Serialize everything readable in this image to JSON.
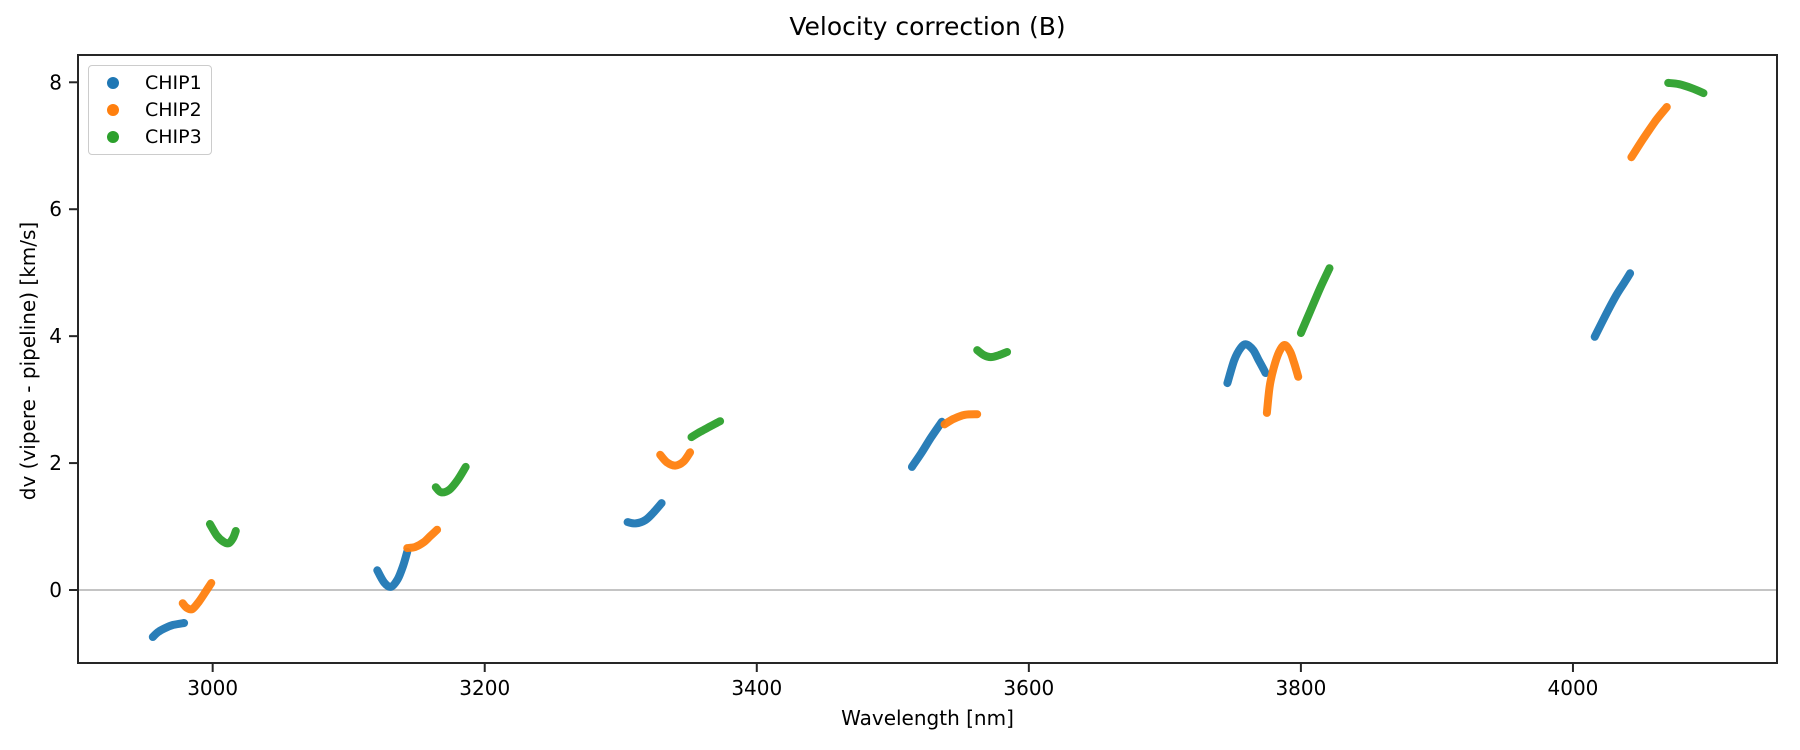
{
  "chart_data": {
    "type": "scatter",
    "title": "Velocity correction (B)",
    "xlabel": "Wavelength [nm]",
    "ylabel": "dv (vipere - pipeline) [km/s]",
    "xlim": [
      2901,
      4150
    ],
    "ylim": [
      -1.15,
      8.43
    ],
    "xticks": [
      3000,
      3200,
      3400,
      3600,
      3800,
      4000
    ],
    "xtick_labels": [
      "3000",
      "3200",
      "3400",
      "3600",
      "3800",
      "4000"
    ],
    "yticks": [
      0,
      2,
      4,
      6,
      8
    ],
    "ytick_labels": [
      "0",
      "2",
      "4",
      "6",
      "8"
    ],
    "grid": false,
    "zero_line_y": 0,
    "zero_line_color": "#b0b0b0",
    "axis_color": "#262626",
    "legend_position": "upper left",
    "series": [
      {
        "name": "CHIP1",
        "color": "#1f77b4",
        "segments": [
          [
            [
              2956,
              -0.74
            ],
            [
              2960,
              -0.66
            ],
            [
              2965,
              -0.6
            ],
            [
              2971,
              -0.55
            ],
            [
              2979,
              -0.52
            ]
          ],
          [
            [
              3121,
              0.31
            ],
            [
              3126,
              0.12
            ],
            [
              3131,
              0.05
            ],
            [
              3136,
              0.17
            ],
            [
              3140,
              0.38
            ],
            [
              3143,
              0.6
            ]
          ],
          [
            [
              3305,
              1.07
            ],
            [
              3311,
              1.05
            ],
            [
              3318,
              1.1
            ],
            [
              3324,
              1.22
            ],
            [
              3330,
              1.37
            ]
          ],
          [
            [
              3514,
              1.94
            ],
            [
              3521,
              2.16
            ],
            [
              3528,
              2.4
            ],
            [
              3536,
              2.65
            ]
          ],
          [
            [
              3746,
              3.26
            ],
            [
              3751,
              3.62
            ],
            [
              3756,
              3.82
            ],
            [
              3760,
              3.87
            ],
            [
              3765,
              3.78
            ],
            [
              3769,
              3.62
            ],
            [
              3774,
              3.42
            ]
          ],
          [
            [
              4016,
              3.99
            ],
            [
              4024,
              4.33
            ],
            [
              4032,
              4.65
            ],
            [
              4038,
              4.85
            ],
            [
              4042,
              4.99
            ]
          ]
        ]
      },
      {
        "name": "CHIP2",
        "color": "#ff7f0e",
        "segments": [
          [
            [
              2978,
              -0.21
            ],
            [
              2981,
              -0.28
            ],
            [
              2985,
              -0.3
            ],
            [
              2990,
              -0.18
            ],
            [
              2995,
              -0.02
            ],
            [
              2999,
              0.11
            ]
          ],
          [
            [
              3143,
              0.66
            ],
            [
              3149,
              0.68
            ],
            [
              3155,
              0.75
            ],
            [
              3160,
              0.85
            ],
            [
              3165,
              0.95
            ]
          ],
          [
            [
              3329,
              2.13
            ],
            [
              3334,
              2.01
            ],
            [
              3340,
              1.96
            ],
            [
              3346,
              2.02
            ],
            [
              3351,
              2.17
            ]
          ],
          [
            [
              3538,
              2.61
            ],
            [
              3545,
              2.7
            ],
            [
              3553,
              2.76
            ],
            [
              3562,
              2.77
            ]
          ],
          [
            [
              3775,
              2.79
            ],
            [
              3777,
              3.2
            ],
            [
              3780,
              3.5
            ],
            [
              3784,
              3.75
            ],
            [
              3788,
              3.86
            ],
            [
              3792,
              3.76
            ],
            [
              3795,
              3.58
            ],
            [
              3798,
              3.36
            ]
          ],
          [
            [
              4043,
              6.82
            ],
            [
              4052,
              7.12
            ],
            [
              4061,
              7.4
            ],
            [
              4069,
              7.61
            ]
          ]
        ]
      },
      {
        "name": "CHIP3",
        "color": "#2ca02c",
        "segments": [
          [
            [
              2998,
              1.04
            ],
            [
              3003,
              0.86
            ],
            [
              3008,
              0.76
            ],
            [
              3012,
              0.74
            ],
            [
              3015,
              0.82
            ],
            [
              3017,
              0.93
            ]
          ],
          [
            [
              3164,
              1.62
            ],
            [
              3168,
              1.54
            ],
            [
              3174,
              1.58
            ],
            [
              3180,
              1.73
            ],
            [
              3186,
              1.94
            ]
          ],
          [
            [
              3352,
              2.41
            ],
            [
              3359,
              2.5
            ],
            [
              3366,
              2.58
            ],
            [
              3373,
              2.66
            ]
          ],
          [
            [
              3562,
              3.78
            ],
            [
              3567,
              3.7
            ],
            [
              3572,
              3.67
            ],
            [
              3578,
              3.7
            ],
            [
              3584,
              3.75
            ]
          ],
          [
            [
              3800,
              4.05
            ],
            [
              3807,
              4.4
            ],
            [
              3814,
              4.75
            ],
            [
              3821,
              5.07
            ]
          ],
          [
            [
              4070,
              7.99
            ],
            [
              4078,
              7.97
            ],
            [
              4087,
              7.91
            ],
            [
              4096,
              7.83
            ]
          ]
        ]
      }
    ]
  }
}
